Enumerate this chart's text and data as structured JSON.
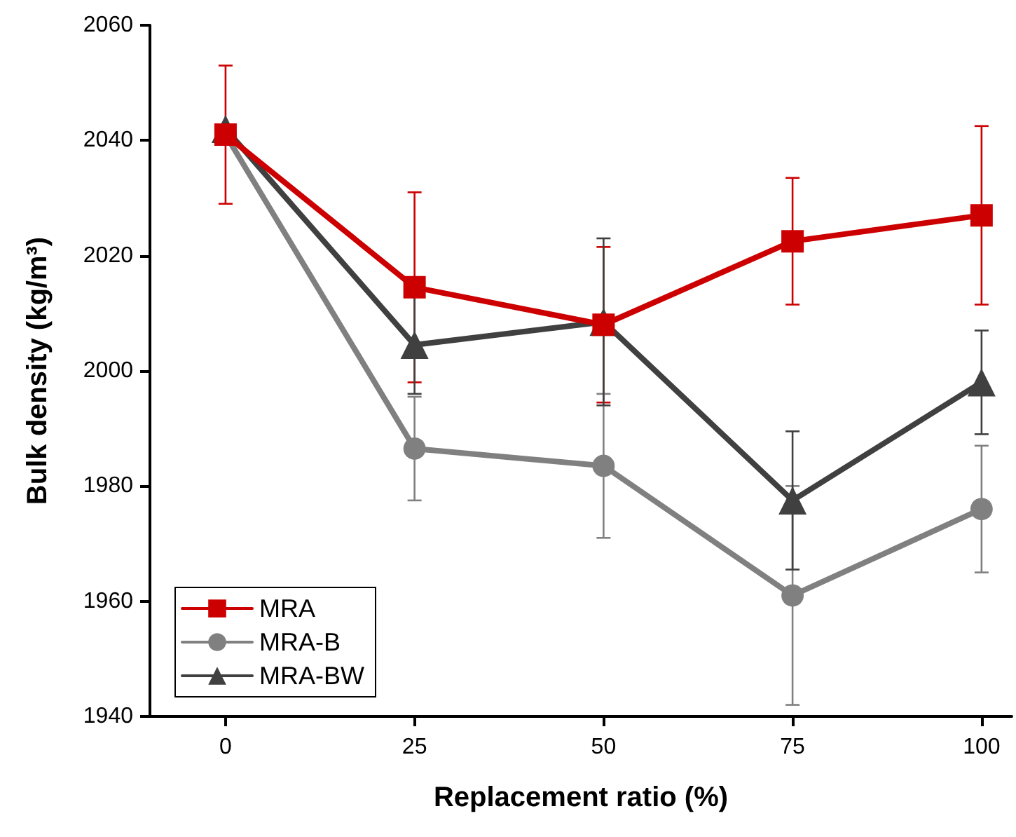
{
  "chart_data": {
    "type": "line",
    "xlabel": "Replacement ratio (%)",
    "ylabel": "Bulk density (kg/m³)",
    "x": [
      0,
      25,
      50,
      75,
      100
    ],
    "xlim": [
      -10,
      104
    ],
    "xticks": [
      0,
      25,
      50,
      75,
      100
    ],
    "ylim": [
      1940,
      2060
    ],
    "yticks": [
      1940,
      1960,
      1980,
      2000,
      2020,
      2040,
      2060
    ],
    "grid": false,
    "legend": "bottom left",
    "line_style": "solid",
    "series": [
      {
        "name": "MRA",
        "color": "#cc0000",
        "marker": "square",
        "values": [
          2041,
          2014.5,
          2008,
          2022.5,
          2027
        ],
        "errors": [
          12,
          16.5,
          13.5,
          11,
          15.5
        ]
      },
      {
        "name": "MRA-B",
        "color": "#808080",
        "marker": "circle",
        "values": [
          2041,
          1986.5,
          1983.5,
          1961,
          1976
        ],
        "errors": [
          null,
          9,
          12.5,
          19,
          11
        ]
      },
      {
        "name": "MRA-BW",
        "color": "#404040",
        "marker": "triangle",
        "values": [
          2042,
          2004.5,
          2008.5,
          1977.5,
          1998
        ],
        "errors": [
          null,
          8.5,
          14.5,
          12,
          9
        ]
      }
    ]
  }
}
